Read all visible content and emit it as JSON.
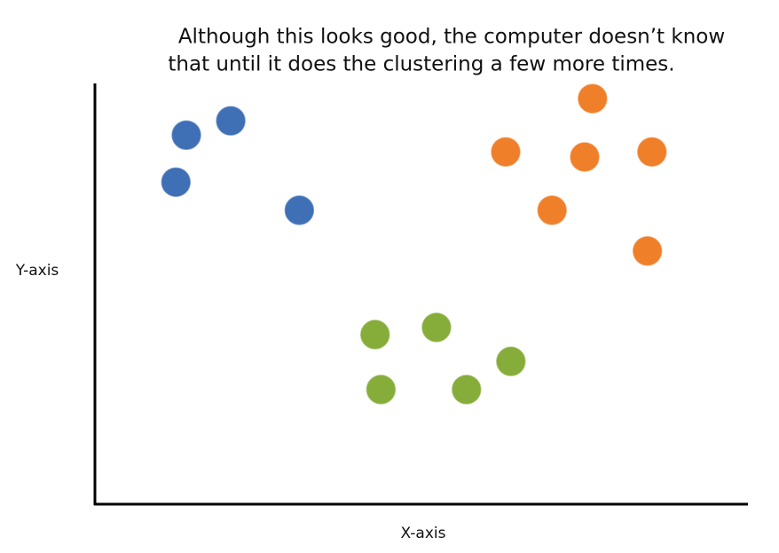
{
  "chart_data": {
    "type": "scatter",
    "title": [
      "Although this looks good, the computer doesn’t know",
      "that until it does the clustering a few more times."
    ],
    "x_label": "X-axis",
    "y_label": "Y-axis",
    "xlim": [
      0,
      100
    ],
    "ylim": [
      0,
      100
    ],
    "series": [
      {
        "color": "#3f6fb5",
        "x": [
          14.0,
          20.8,
          12.4,
          31.3
        ],
        "values": [
          87.9,
          91.3,
          76.7,
          70.0
        ]
      },
      {
        "color": "#f07f2a",
        "x": [
          76.2,
          62.9,
          75.0,
          85.3,
          70.0,
          84.6
        ],
        "values": [
          96.6,
          83.9,
          82.7,
          83.9,
          70.0,
          60.3
        ]
      },
      {
        "color": "#86ad3a",
        "x": [
          42.9,
          52.3,
          63.7,
          43.8,
          56.9
        ],
        "values": [
          40.4,
          42.1,
          34.0,
          27.3,
          27.3
        ]
      }
    ]
  }
}
